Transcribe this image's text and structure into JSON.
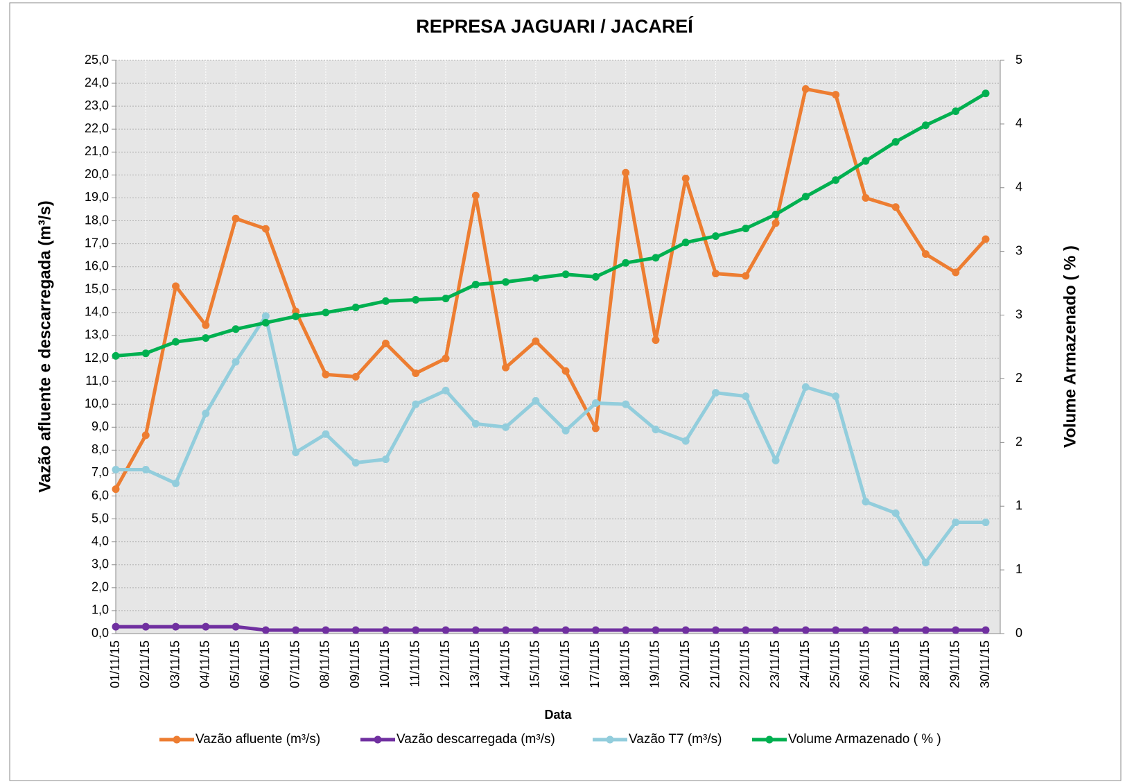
{
  "chart_data": {
    "type": "line",
    "title": "REPRESA JAGUARI / JACAREÍ",
    "x_label": "Data",
    "y_label": "Vazão afluente e descarregada (m³/s)",
    "y2_label": "Volume Armazenado ( % )",
    "categories": [
      "01/11/15",
      "02/11/15",
      "03/11/15",
      "04/11/15",
      "05/11/15",
      "06/11/15",
      "07/11/15",
      "08/11/15",
      "09/11/15",
      "10/11/15",
      "11/11/15",
      "12/11/15",
      "13/11/15",
      "14/11/15",
      "15/11/15",
      "16/11/15",
      "17/11/15",
      "18/11/15",
      "19/11/15",
      "20/11/15",
      "21/11/15",
      "22/11/15",
      "23/11/15",
      "24/11/15",
      "25/11/15",
      "26/11/15",
      "27/11/15",
      "28/11/15",
      "29/11/15",
      "30/11/15"
    ],
    "series": [
      {
        "name": "Vazão afluente (m³/s)",
        "color": "#ed7d31",
        "values": [
          6.3,
          8.65,
          15.15,
          13.45,
          18.1,
          17.65,
          14.05,
          11.3,
          11.2,
          12.65,
          11.35,
          12.0,
          19.1,
          11.6,
          12.75,
          11.45,
          8.95,
          20.1,
          12.8,
          19.85,
          15.7,
          15.6,
          17.9,
          23.75,
          23.5,
          19.0,
          18.6,
          16.55,
          15.75,
          17.2
        ]
      },
      {
        "name": "Vazão descarregada (m³/s)",
        "color": "#7030a0",
        "values": [
          0.3,
          0.3,
          0.3,
          0.3,
          0.3,
          0.15,
          0.15,
          0.15,
          0.15,
          0.15,
          0.15,
          0.15,
          0.15,
          0.15,
          0.15,
          0.15,
          0.15,
          0.15,
          0.15,
          0.15,
          0.15,
          0.15,
          0.15,
          0.15,
          0.15,
          0.15,
          0.15,
          0.15,
          0.15,
          0.15
        ]
      },
      {
        "name": "Vazão T7 (m³/s)",
        "color": "#92cddc",
        "values": [
          7.15,
          7.15,
          6.55,
          9.6,
          11.85,
          13.85,
          7.9,
          8.7,
          7.45,
          7.6,
          10.0,
          10.6,
          9.15,
          9.0,
          10.15,
          8.85,
          10.05,
          10.0,
          8.9,
          8.4,
          10.5,
          10.35,
          7.55,
          10.75,
          10.35,
          5.75,
          5.25,
          3.1,
          4.85,
          4.85
        ]
      },
      {
        "name": "Volume Armazenado ( % )",
        "color": "#00b050",
        "axis": "y2",
        "values": [
          2.18,
          2.2,
          2.29,
          2.32,
          2.39,
          2.44,
          2.49,
          2.52,
          2.56,
          2.61,
          2.62,
          2.63,
          2.74,
          2.76,
          2.79,
          2.82,
          2.8,
          2.91,
          2.95,
          3.07,
          3.12,
          3.18,
          3.29,
          3.43,
          3.56,
          3.71,
          3.86,
          3.99,
          4.1,
          4.24
        ]
      }
    ],
    "ylim": [
      0,
      25
    ],
    "yticks": [
      {
        "value": 0,
        "label": "0,0"
      },
      {
        "value": 1,
        "label": "1,0"
      },
      {
        "value": 2,
        "label": "2,0"
      },
      {
        "value": 3,
        "label": "3,0"
      },
      {
        "value": 4,
        "label": "4,0"
      },
      {
        "value": 5,
        "label": "5,0"
      },
      {
        "value": 6,
        "label": "6,0"
      },
      {
        "value": 7,
        "label": "7,0"
      },
      {
        "value": 8,
        "label": "8,0"
      },
      {
        "value": 9,
        "label": "9,0"
      },
      {
        "value": 10,
        "label": "10,0"
      },
      {
        "value": 11,
        "label": "11,0"
      },
      {
        "value": 12,
        "label": "12,0"
      },
      {
        "value": 13,
        "label": "13,0"
      },
      {
        "value": 14,
        "label": "14,0"
      },
      {
        "value": 15,
        "label": "15,0"
      },
      {
        "value": 16,
        "label": "16,0"
      },
      {
        "value": 17,
        "label": "17,0"
      },
      {
        "value": 18,
        "label": "18,0"
      },
      {
        "value": 19,
        "label": "19,0"
      },
      {
        "value": 20,
        "label": "20,0"
      },
      {
        "value": 21,
        "label": "21,0"
      },
      {
        "value": 22,
        "label": "22,0"
      },
      {
        "value": 23,
        "label": "23,0"
      },
      {
        "value": 24,
        "label": "24,0"
      },
      {
        "value": 25,
        "label": "25,0"
      }
    ],
    "y2lim": [
      0,
      4.5
    ],
    "y2ticks": [
      0,
      {
        "value": 0.5,
        "label": "1"
      },
      {
        "value": 1,
        "label": "1"
      },
      {
        "value": 1.5,
        "label": "2"
      },
      {
        "value": 2,
        "label": "2"
      },
      {
        "value": 2.5,
        "label": "3"
      },
      {
        "value": 3,
        "label": "3"
      },
      {
        "value": 3.5,
        "label": "4"
      },
      {
        "value": 4,
        "label": "4"
      },
      {
        "value": 4.5,
        "label": "5"
      }
    ],
    "grid": true,
    "legend": "bottom"
  }
}
